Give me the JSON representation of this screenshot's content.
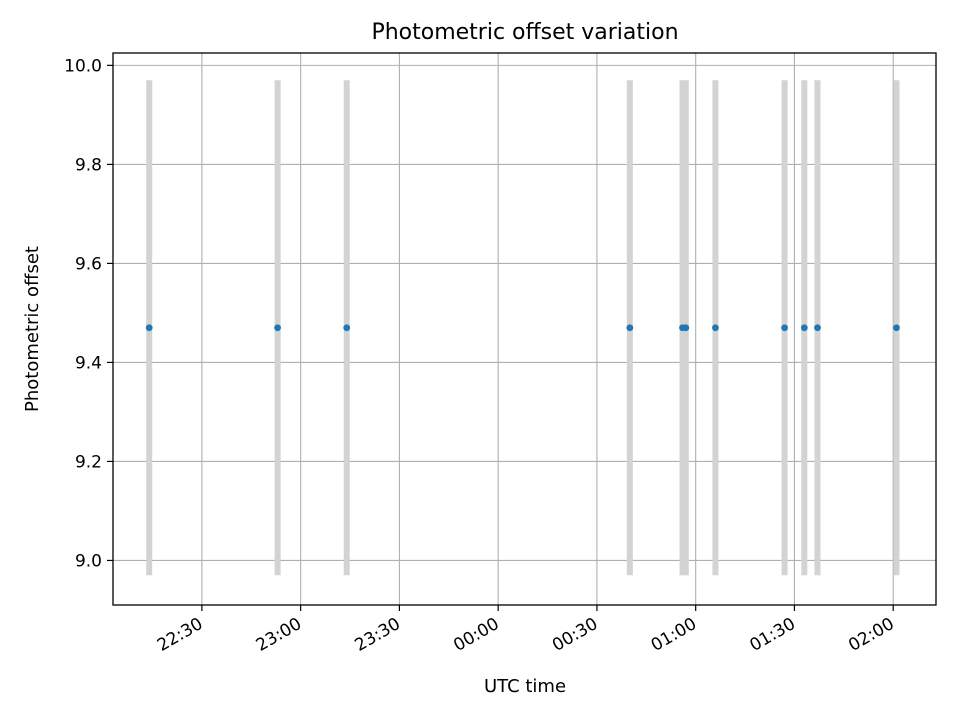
{
  "chart_data": {
    "type": "scatter",
    "title": "Photometric offset variation",
    "xlabel": "UTC time",
    "ylabel": "Photometric offset",
    "x_ticks": [
      "22:30",
      "23:00",
      "23:30",
      "00:00",
      "00:30",
      "01:00",
      "01:30",
      "02:00"
    ],
    "y_ticks": [
      "9.0",
      "9.2",
      "9.4",
      "9.6",
      "9.8",
      "10.0"
    ],
    "xlim": [
      "22:03",
      "02:13"
    ],
    "ylim": [
      8.91,
      10.025
    ],
    "grid": true,
    "colors": {
      "point": "#1f77b4",
      "error_bar": "#d3d3d3",
      "grid": "#b0b0b0"
    },
    "series": [
      {
        "x": [
          "22:14",
          "22:53",
          "23:14",
          "00:40",
          "00:56",
          "00:57",
          "01:06",
          "01:27",
          "01:33",
          "01:37",
          "02:01"
        ],
        "y": [
          9.47,
          9.47,
          9.47,
          9.47,
          9.47,
          9.47,
          9.47,
          9.47,
          9.47,
          9.47,
          9.47
        ],
        "yerr": [
          0.5,
          0.5,
          0.5,
          0.5,
          0.5,
          0.5,
          0.5,
          0.5,
          0.5,
          0.5,
          0.5
        ]
      }
    ]
  }
}
